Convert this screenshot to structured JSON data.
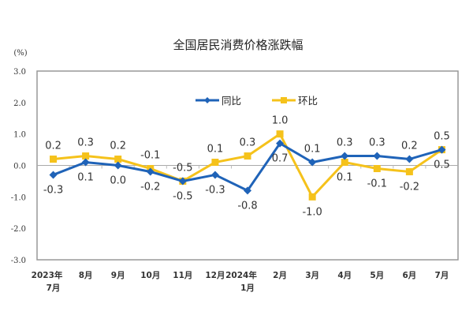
{
  "chart_data": {
    "type": "line",
    "title": "全国居民消费价格涨跌幅",
    "ylabel": "(%)",
    "xlabel": "",
    "ylim": [
      -3.0,
      3.0
    ],
    "yticks": [
      "3.0",
      "2.0",
      "1.0",
      "0.0",
      "-1.0",
      "-2.0",
      "-3.0"
    ],
    "categories": [
      [
        "2023年",
        "7月"
      ],
      [
        "8月"
      ],
      [
        "9月"
      ],
      [
        "10月"
      ],
      [
        "11月"
      ],
      [
        "12月"
      ],
      [
        "2024年",
        "1月"
      ],
      [
        "2月"
      ],
      [
        "3月"
      ],
      [
        "4月"
      ],
      [
        "5月"
      ],
      [
        "6月"
      ],
      [
        "7月"
      ]
    ],
    "legend_position": "top-center",
    "series": [
      {
        "name": "同比",
        "color": "#1f63b8",
        "marker": "diamond",
        "values": [
          -0.3,
          0.1,
          0.0,
          -0.2,
          -0.5,
          -0.3,
          -0.8,
          0.7,
          0.1,
          0.3,
          0.3,
          0.2,
          0.5
        ],
        "labels": [
          "-0.3",
          "0.1",
          "0.0",
          "-0.2",
          "-0.5",
          "-0.3",
          "-0.8",
          "0.7",
          "0.1",
          "0.3",
          "0.3",
          "0.2",
          "0.5"
        ]
      },
      {
        "name": "环比",
        "color": "#f5c21b",
        "marker": "square",
        "values": [
          0.2,
          0.3,
          0.2,
          -0.1,
          -0.5,
          0.1,
          0.3,
          1.0,
          -1.0,
          0.1,
          -0.1,
          -0.2,
          0.5
        ],
        "labels": [
          "0.2",
          "0.3",
          "0.2",
          "-0.1",
          "-0.5",
          "0.1",
          "0.3",
          "1.0",
          "-1.0",
          "0.1",
          "-0.1",
          "-0.2",
          "0.5"
        ]
      }
    ]
  }
}
